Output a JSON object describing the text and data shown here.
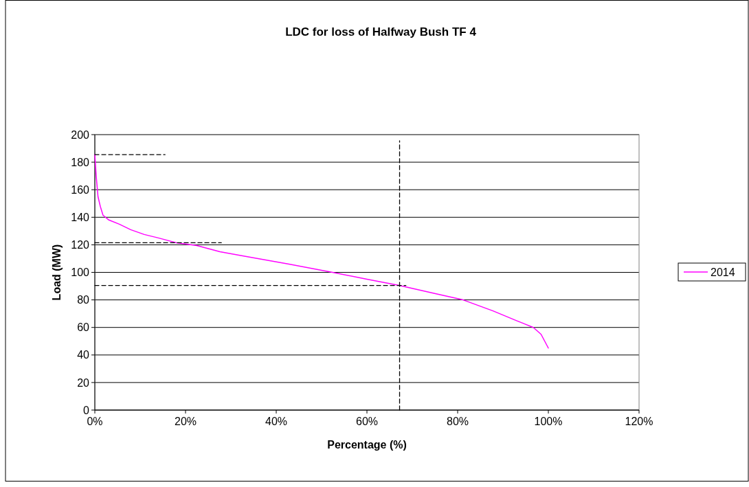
{
  "chart_data": {
    "type": "line",
    "title": "LDC for loss of Halfway Bush TF 4",
    "xlabel": "Percentage (%)",
    "ylabel": "Load (MW)",
    "xlim": [
      0,
      120
    ],
    "xticks": [
      {
        "value": 0,
        "label": "0%"
      },
      {
        "value": 20,
        "label": "20%"
      },
      {
        "value": 40,
        "label": "40%"
      },
      {
        "value": 60,
        "label": "60%"
      },
      {
        "value": 80,
        "label": "80%"
      },
      {
        "value": 100,
        "label": "100%"
      },
      {
        "value": 120,
        "label": "120%"
      }
    ],
    "ylim": [
      0,
      200
    ],
    "yticks": [
      0,
      20,
      40,
      60,
      80,
      100,
      120,
      140,
      160,
      180,
      200
    ],
    "grid": "y",
    "legend": "right",
    "series": [
      {
        "name": "2014",
        "color": "#ff00ff",
        "line_style": "solid",
        "x": [
          0,
          0.3,
          0.7,
          1.2,
          1.8,
          3.1,
          5.4,
          7.9,
          10.9,
          14,
          18,
          22.5,
          27.6,
          32.6,
          37.7,
          42.8,
          52.4,
          60,
          67.1,
          75.1,
          81.2,
          87.8,
          92.9,
          96.7,
          98.4,
          100
        ],
        "values": [
          185.5,
          170,
          155,
          148,
          141.5,
          138,
          135,
          131,
          127.5,
          125,
          121.5,
          119.5,
          115,
          112,
          109,
          106,
          100,
          95,
          90.5,
          84.5,
          80,
          72,
          65,
          60,
          55,
          45
        ]
      },
      {
        "color": "#000000",
        "line_style": "dashed",
        "x": [
          0,
          15.5
        ],
        "values": [
          185.5,
          185.5
        ]
      },
      {
        "color": "#000000",
        "line_style": "dashed",
        "x": [
          0,
          27.9
        ],
        "values": [
          121.5,
          121.5
        ]
      },
      {
        "color": "#000000",
        "line_style": "dashed",
        "x": [
          0,
          68.6
        ],
        "values": [
          90.5,
          90.5
        ]
      },
      {
        "color": "#000000",
        "line_style": "dashed",
        "x": [
          67.2,
          67.2
        ],
        "values": [
          0,
          195.5
        ]
      }
    ]
  }
}
